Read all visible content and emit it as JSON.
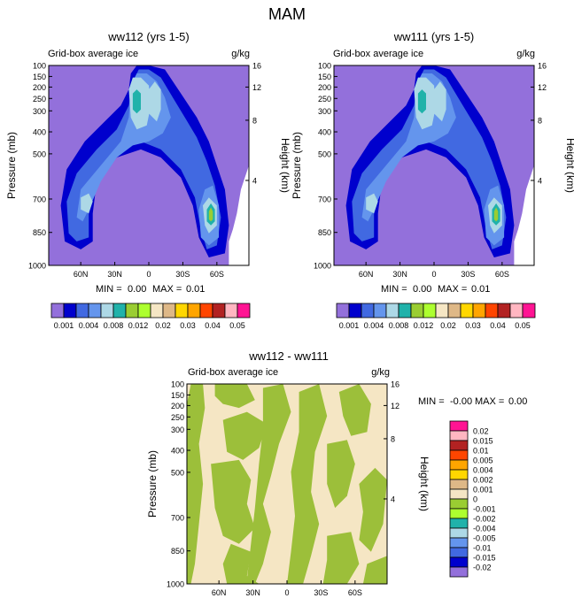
{
  "figure_title": "MAM",
  "chart_data": [
    {
      "type": "heatmap",
      "title": "ww112 (yrs 1-5)",
      "subtitle_left": "Grid-box average ice",
      "subtitle_right": "g/kg",
      "ylabel": "Pressure (mb)",
      "ylabel_right": "Height (km)",
      "y_ticks": [
        "100",
        "150",
        "200",
        "250",
        "300",
        "400",
        "500",
        "700",
        "850",
        "1000"
      ],
      "y_right_ticks": [
        "16",
        "12",
        "8",
        "4"
      ],
      "x_ticks": [
        "60N",
        "30N",
        "0",
        "30S",
        "60S"
      ],
      "stats": {
        "min_label": "MIN =",
        "min": "0.00",
        "max_label": "MAX =",
        "max": "0.01"
      },
      "legend_levels": [
        "0.001",
        "0.004",
        "0.008",
        "0.012",
        "0.02",
        "0.03",
        "0.04",
        "0.05"
      ]
    },
    {
      "type": "heatmap",
      "title": "ww111 (yrs 1-5)",
      "subtitle_left": "Grid-box average ice",
      "subtitle_right": "g/kg",
      "ylabel": "Pressure (mb)",
      "ylabel_right": "Height (km)",
      "y_ticks": [
        "100",
        "150",
        "200",
        "250",
        "300",
        "400",
        "500",
        "700",
        "850",
        "1000"
      ],
      "y_right_ticks": [
        "16",
        "12",
        "8",
        "4"
      ],
      "x_ticks": [
        "60N",
        "30N",
        "0",
        "30S",
        "60S"
      ],
      "stats": {
        "min_label": "MIN =",
        "min": "0.00",
        "max_label": "MAX =",
        "max": "0.01"
      },
      "legend_levels": [
        "0.001",
        "0.004",
        "0.008",
        "0.012",
        "0.02",
        "0.03",
        "0.04",
        "0.05"
      ]
    },
    {
      "type": "heatmap",
      "title": "ww112 - ww111",
      "subtitle_left": "Grid-box average ice",
      "subtitle_right": "g/kg",
      "ylabel": "Pressure (mb)",
      "ylabel_right": "Height (km)",
      "y_ticks": [
        "100",
        "150",
        "200",
        "250",
        "300",
        "400",
        "500",
        "700",
        "850",
        "1000"
      ],
      "y_right_ticks": [
        "16",
        "12",
        "8",
        "4"
      ],
      "x_ticks": [
        "60N",
        "30N",
        "0",
        "30S",
        "60S"
      ],
      "stats": {
        "min_label": "MIN =",
        "min": "-0.00",
        "max_label": "MAX =",
        "max": "0.00"
      },
      "legend_levels": [
        "0.02",
        "0.015",
        "0.01",
        "0.005",
        "0.004",
        "0.002",
        "0.001",
        "0",
        "-0.001",
        "-0.002",
        "-0.004",
        "-0.005",
        "-0.01",
        "-0.015",
        "-0.02"
      ]
    }
  ],
  "colors": {
    "background_fill": "#9370db",
    "main_palette": [
      "#9370db",
      "#0000cd",
      "#4169e1",
      "#6495ed",
      "#add8e6",
      "#20b2aa",
      "#9acd32",
      "#add8e6",
      "#f5deb3",
      "#d2b48c",
      "#ffd700",
      "#ffa500",
      "#ff4500",
      "#b22222",
      "#ffb6c1",
      "#ff1493"
    ],
    "main_legend_boxes": [
      "#9370db",
      "#0000cd",
      "#4169e1",
      "#6495ed",
      "#add8e6",
      "#20b2aa",
      "#9acd32",
      "#adff2f",
      "#f5e6c4",
      "#deb887",
      "#ffd700",
      "#ffa500",
      "#ff4500",
      "#b22222",
      "#ffb6c1",
      "#ff1493"
    ],
    "diff_legend_boxes": [
      "#ff1493",
      "#ffb6c1",
      "#b22222",
      "#ff4500",
      "#ffa500",
      "#ffd700",
      "#deb887",
      "#f5e6c4",
      "#9acd32",
      "#adff2f",
      "#20b2aa",
      "#add8e6",
      "#6495ed",
      "#4169e1",
      "#0000cd",
      "#9370db"
    ],
    "diff_beige": "#f5e6c4",
    "diff_green": "#9cbf3a"
  }
}
